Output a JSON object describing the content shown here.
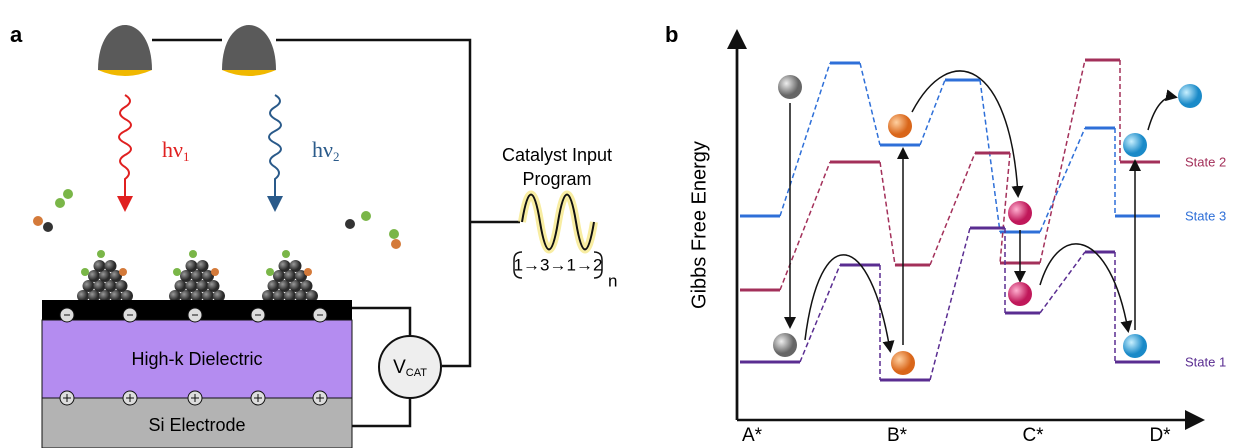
{
  "panels": {
    "a": "a",
    "b": "b"
  },
  "light1": {
    "text": "hν",
    "sub": "1"
  },
  "light2": {
    "text": "hν",
    "sub": "2"
  },
  "program": {
    "line1": "Catalyst Input",
    "line2": "Program",
    "sequence": "1→3→1→2",
    "repeat": "n"
  },
  "device": {
    "dielectric": "High-k Dielectric",
    "electrode": "Si Electrode",
    "voltage": "V",
    "voltage_sub": "CAT"
  },
  "energy": {
    "ylabel": "Gibbs Free Energy",
    "xlabels": [
      "A*",
      "B*",
      "C*",
      "D*"
    ],
    "states": [
      "State 2",
      "State 3",
      "State 1"
    ]
  }
}
